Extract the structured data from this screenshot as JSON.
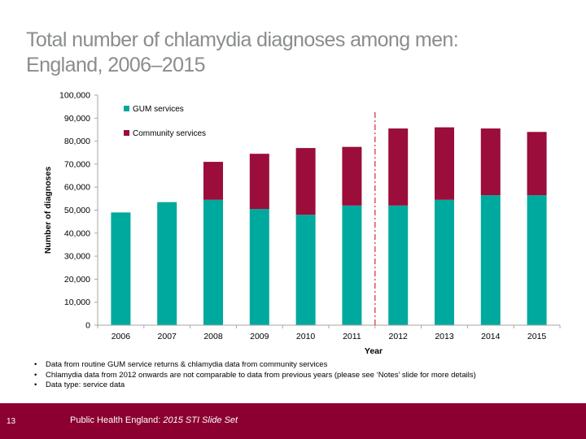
{
  "title": {
    "line1": "Total number of chlamydia diagnoses among men:",
    "line2": "England, 2006–2015"
  },
  "colors": {
    "gum": "#00a99d",
    "community": "#9b0d3a",
    "divider": "#d9262e",
    "title": "#8a8c8e",
    "footer_bg": "#8b0030"
  },
  "chart_data": {
    "type": "bar",
    "stacked": true,
    "categories": [
      "2006",
      "2007",
      "2008",
      "2009",
      "2010",
      "2011",
      "2012",
      "2013",
      "2014",
      "2015"
    ],
    "series": [
      {
        "name": "GUM services",
        "values": [
          49000,
          53500,
          54500,
          50500,
          48000,
          52000,
          52000,
          54500,
          56500,
          56500
        ]
      },
      {
        "name": "Community services",
        "values": [
          0,
          0,
          16500,
          24000,
          29000,
          25500,
          33500,
          31500,
          29000,
          27500
        ]
      }
    ],
    "ylim": [
      0,
      100000
    ],
    "yticks": [
      "0",
      "10,000",
      "20,000",
      "30,000",
      "40,000",
      "50,000",
      "60,000",
      "70,000",
      "80,000",
      "90,000",
      "100,000"
    ],
    "ylabel": "Number of diagnoses",
    "xlabel": "Year",
    "legend_position": "top-left",
    "divider_between": [
      "2011",
      "2012"
    ],
    "grid": false
  },
  "bullets": [
    "Data from routine GUM service returns & chlamydia data from community services",
    "Chlamydia data from 2012 onwards are not comparable to data from previous years (please see ‘Notes’ slide for more details)",
    "Data type: service data"
  ],
  "bullet_glyph": "•",
  "footer": {
    "slide_number": "13",
    "org": "Public Health England:",
    "slide_set": "2015 STI Slide Set"
  }
}
